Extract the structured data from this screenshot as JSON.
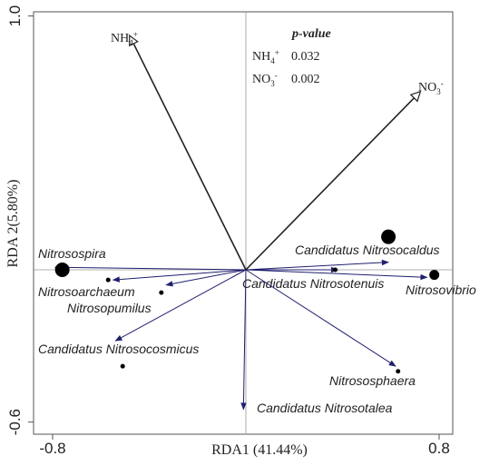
{
  "chart_data": {
    "type": "scatter",
    "subtype": "rda-biplot",
    "title": "",
    "xlabel": "RDA1 (41.44%)",
    "ylabel": "RDA 2(5.80%)",
    "xlim": [
      -0.8,
      0.8
    ],
    "ylim": [
      -0.6,
      1.0
    ],
    "x_ticks": [
      "-0.8",
      "0.8"
    ],
    "y_ticks": [
      "1.0",
      "-0.6"
    ],
    "reference_lines": {
      "x": 0,
      "y": 0
    },
    "colors": {
      "species_arrow": "#1f1f6e",
      "env_arrow": "#333333",
      "points": "#000000",
      "axis": "#555555"
    },
    "environmental_vectors": [
      {
        "label": "NH",
        "sub": "4",
        "sup": "+",
        "x": -0.48,
        "y": 0.92
      },
      {
        "label": "NO",
        "sub": "3",
        "sup": "-",
        "x": 0.72,
        "y": 0.7
      }
    ],
    "species_vectors": [
      {
        "name": "Nitrosospira",
        "x": -0.79,
        "y": 0.01
      },
      {
        "name": "Nitrosoarchaeum",
        "x": -0.55,
        "y": -0.04
      },
      {
        "name": "Nitrosopumilus",
        "x": -0.33,
        "y": -0.06
      },
      {
        "name": "Candidatus Nitrosocosmicus",
        "x": -0.54,
        "y": -0.28
      },
      {
        "name": "Candidatus Nitrosocaldus",
        "x": 0.59,
        "y": 0.03
      },
      {
        "name": "Candidatus Nitrosotenuis",
        "x": 0.38,
        "y": 0.0
      },
      {
        "name": "Nitrosovibrio",
        "x": 0.75,
        "y": -0.03
      },
      {
        "name": "Nitrososphaera",
        "x": 0.62,
        "y": -0.38
      },
      {
        "name": "Candidatus Nitrosotalea",
        "x": -0.01,
        "y": -0.55
      }
    ],
    "sample_points": [
      {
        "x": -0.76,
        "y": 0.0,
        "size": "large"
      },
      {
        "x": -0.57,
        "y": -0.04,
        "size": "small"
      },
      {
        "x": -0.35,
        "y": -0.09,
        "size": "small"
      },
      {
        "x": -0.51,
        "y": -0.38,
        "size": "small"
      },
      {
        "x": 0.59,
        "y": 0.13,
        "size": "large"
      },
      {
        "x": 0.37,
        "y": 0.0,
        "size": "small"
      },
      {
        "x": 0.78,
        "y": -0.02,
        "size": "medium"
      },
      {
        "x": 0.63,
        "y": -0.4,
        "size": "small"
      }
    ],
    "pvalue_table": {
      "title": "p-value",
      "rows": [
        {
          "label": "NH",
          "sub": "4",
          "sup": "+",
          "value": "0.032"
        },
        {
          "label": "NO",
          "sub": "3",
          "sup": "-",
          "value": "0.002"
        }
      ]
    }
  }
}
